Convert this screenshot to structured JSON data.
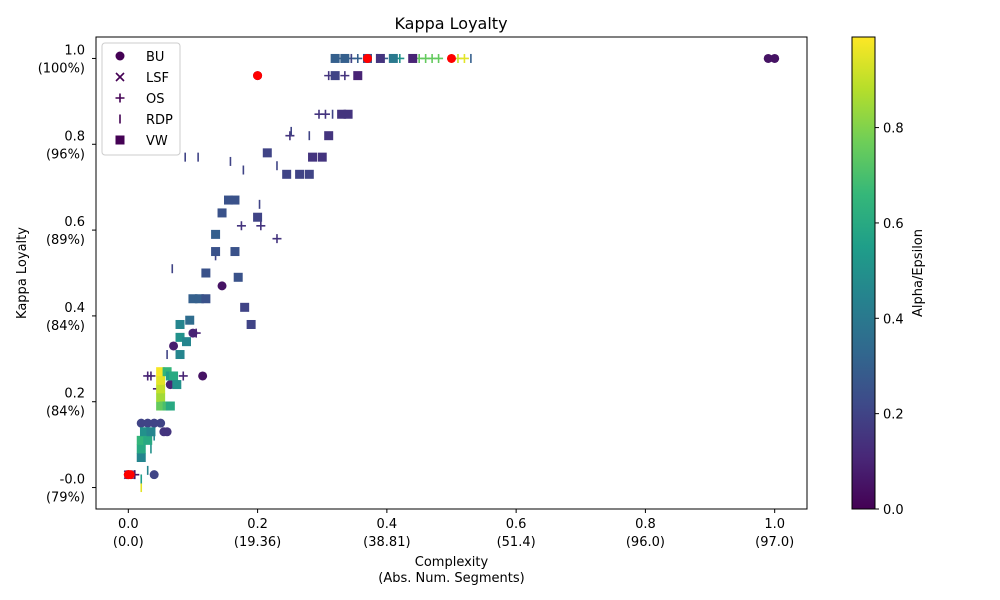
{
  "chart_data": {
    "type": "scatter",
    "title": "Kappa Loyalty",
    "xlabel_lines": [
      "Complexity",
      "(Abs. Num. Segments)"
    ],
    "ylabel": "Kappa Loyalty",
    "xlim": [
      -0.05,
      1.05
    ],
    "ylim": [
      -0.05,
      1.05
    ],
    "x_ticks": [
      {
        "value": 0.0,
        "label": "0.0",
        "sub": "(0.0)"
      },
      {
        "value": 0.2,
        "label": "0.2",
        "sub": "(19.36)"
      },
      {
        "value": 0.4,
        "label": "0.4",
        "sub": "(38.81)"
      },
      {
        "value": 0.6,
        "label": "0.6",
        "sub": "(51.4)"
      },
      {
        "value": 0.8,
        "label": "0.8",
        "sub": "(96.0)"
      },
      {
        "value": 1.0,
        "label": "1.0",
        "sub": "(97.0)"
      }
    ],
    "y_ticks": [
      {
        "value": 0.0,
        "label": "-0.0",
        "sub": "(79%)"
      },
      {
        "value": 0.2,
        "label": "0.2",
        "sub": "(84%)"
      },
      {
        "value": 0.4,
        "label": "0.4",
        "sub": "(84%)"
      },
      {
        "value": 0.6,
        "label": "0.6",
        "sub": "(89%)"
      },
      {
        "value": 0.8,
        "label": "0.8",
        "sub": "(96%)"
      },
      {
        "value": 1.0,
        "label": "1.0",
        "sub": "(100%)"
      }
    ],
    "colorbar": {
      "label": "Alpha/Epsilon",
      "range": [
        0,
        0.99
      ],
      "ticks": [
        {
          "value": 0.0,
          "label": "0.0"
        },
        {
          "value": 0.2,
          "label": "0.2"
        },
        {
          "value": 0.4,
          "label": "0.4"
        },
        {
          "value": 0.6,
          "label": "0.6"
        },
        {
          "value": 0.8,
          "label": "0.8"
        }
      ]
    },
    "legend_position": "top-left",
    "series": [
      {
        "name": "BU",
        "marker": "circle",
        "points": [
          [
            0.0,
            0.03,
            0.05
          ],
          [
            0.04,
            0.03,
            0.2
          ],
          [
            0.02,
            0.15,
            0.2
          ],
          [
            0.03,
            0.15,
            0.2
          ],
          [
            0.04,
            0.15,
            0.2
          ],
          [
            0.05,
            0.15,
            0.2
          ],
          [
            0.055,
            0.13,
            0.15
          ],
          [
            0.06,
            0.13,
            0.15
          ],
          [
            0.065,
            0.24,
            0.1
          ],
          [
            0.07,
            0.33,
            0.08
          ],
          [
            0.1,
            0.36,
            0.1
          ],
          [
            0.115,
            0.26,
            0.05
          ],
          [
            0.145,
            0.47,
            0.05
          ],
          [
            0.2,
            0.96,
            0.05
          ],
          [
            0.99,
            1.0,
            0.05
          ],
          [
            1.0,
            1.0,
            0.05
          ]
        ]
      },
      {
        "name": "LSF",
        "marker": "x",
        "points": [
          [
            0.0,
            0.03,
            0.05
          ],
          [
            0.002,
            0.03,
            0.05
          ]
        ]
      },
      {
        "name": "OS",
        "marker": "plus",
        "points": [
          [
            0.01,
            0.03,
            0.05
          ],
          [
            0.03,
            0.26,
            0.1
          ],
          [
            0.035,
            0.26,
            0.1
          ],
          [
            0.045,
            0.23,
            0.1
          ],
          [
            0.085,
            0.26,
            0.1
          ],
          [
            0.105,
            0.36,
            0.1
          ],
          [
            0.175,
            0.61,
            0.15
          ],
          [
            0.205,
            0.61,
            0.15
          ],
          [
            0.23,
            0.58,
            0.15
          ],
          [
            0.25,
            0.82,
            0.15
          ],
          [
            0.295,
            0.87,
            0.15
          ],
          [
            0.305,
            0.87,
            0.15
          ],
          [
            0.31,
            0.96,
            0.15
          ],
          [
            0.335,
            0.96,
            0.15
          ],
          [
            0.33,
            1.0,
            0.3
          ],
          [
            0.345,
            1.0,
            0.3
          ],
          [
            0.355,
            1.0,
            0.3
          ],
          [
            0.395,
            1.0,
            0.3
          ],
          [
            0.42,
            1.0,
            0.5
          ],
          [
            0.45,
            1.0,
            0.75
          ],
          [
            0.46,
            1.0,
            0.75
          ],
          [
            0.47,
            1.0,
            0.75
          ],
          [
            0.48,
            1.0,
            0.75
          ],
          [
            0.5,
            1.0,
            0.85
          ],
          [
            0.51,
            1.0,
            0.9
          ],
          [
            0.52,
            1.0,
            0.95
          ]
        ]
      },
      {
        "name": "RDP",
        "marker": "vline",
        "points": [
          [
            0.02,
            0.0,
            0.95
          ],
          [
            0.02,
            0.02,
            0.55
          ],
          [
            0.03,
            0.04,
            0.45
          ],
          [
            0.025,
            0.09,
            0.5
          ],
          [
            0.035,
            0.09,
            0.5
          ],
          [
            0.04,
            0.12,
            0.45
          ],
          [
            0.06,
            0.31,
            0.2
          ],
          [
            0.068,
            0.51,
            0.2
          ],
          [
            0.088,
            0.77,
            0.2
          ],
          [
            0.108,
            0.77,
            0.2
          ],
          [
            0.135,
            0.54,
            0.2
          ],
          [
            0.158,
            0.76,
            0.2
          ],
          [
            0.178,
            0.74,
            0.2
          ],
          [
            0.203,
            0.66,
            0.2
          ],
          [
            0.23,
            0.75,
            0.2
          ],
          [
            0.252,
            0.83,
            0.2
          ],
          [
            0.28,
            0.82,
            0.2
          ],
          [
            0.316,
            0.87,
            0.2
          ],
          [
            0.345,
            1.0,
            0.2
          ],
          [
            0.385,
            1.0,
            0.2
          ],
          [
            0.53,
            1.0,
            0.3
          ]
        ]
      },
      {
        "name": "VW",
        "marker": "square",
        "points": [
          [
            0.02,
            0.07,
            0.45
          ],
          [
            0.02,
            0.09,
            0.6
          ],
          [
            0.02,
            0.11,
            0.65
          ],
          [
            0.025,
            0.13,
            0.5
          ],
          [
            0.03,
            0.11,
            0.6
          ],
          [
            0.035,
            0.13,
            0.45
          ],
          [
            0.05,
            0.19,
            0.75
          ],
          [
            0.05,
            0.21,
            0.85
          ],
          [
            0.05,
            0.23,
            0.9
          ],
          [
            0.05,
            0.25,
            0.95
          ],
          [
            0.05,
            0.27,
            0.98
          ],
          [
            0.055,
            0.19,
            0.75
          ],
          [
            0.06,
            0.19,
            0.7
          ],
          [
            0.065,
            0.19,
            0.6
          ],
          [
            0.06,
            0.27,
            0.65
          ],
          [
            0.065,
            0.26,
            0.55
          ],
          [
            0.07,
            0.26,
            0.6
          ],
          [
            0.075,
            0.24,
            0.5
          ],
          [
            0.08,
            0.31,
            0.45
          ],
          [
            0.08,
            0.35,
            0.5
          ],
          [
            0.08,
            0.38,
            0.45
          ],
          [
            0.09,
            0.34,
            0.45
          ],
          [
            0.095,
            0.39,
            0.35
          ],
          [
            0.1,
            0.44,
            0.3
          ],
          [
            0.11,
            0.44,
            0.3
          ],
          [
            0.12,
            0.44,
            0.25
          ],
          [
            0.12,
            0.5,
            0.25
          ],
          [
            0.135,
            0.55,
            0.25
          ],
          [
            0.135,
            0.59,
            0.3
          ],
          [
            0.145,
            0.64,
            0.25
          ],
          [
            0.155,
            0.67,
            0.25
          ],
          [
            0.165,
            0.67,
            0.25
          ],
          [
            0.165,
            0.55,
            0.25
          ],
          [
            0.17,
            0.49,
            0.25
          ],
          [
            0.18,
            0.42,
            0.2
          ],
          [
            0.19,
            0.38,
            0.2
          ],
          [
            0.2,
            0.63,
            0.2
          ],
          [
            0.215,
            0.78,
            0.2
          ],
          [
            0.245,
            0.73,
            0.2
          ],
          [
            0.265,
            0.73,
            0.2
          ],
          [
            0.28,
            0.73,
            0.2
          ],
          [
            0.285,
            0.77,
            0.15
          ],
          [
            0.3,
            0.77,
            0.15
          ],
          [
            0.31,
            0.82,
            0.15
          ],
          [
            0.32,
            0.96,
            0.2
          ],
          [
            0.32,
            1.0,
            0.3
          ],
          [
            0.335,
            1.0,
            0.3
          ],
          [
            0.33,
            0.87,
            0.15
          ],
          [
            0.34,
            0.87,
            0.15
          ],
          [
            0.355,
            0.96,
            0.1
          ],
          [
            0.37,
            1.0,
            0.25
          ],
          [
            0.39,
            1.0,
            0.15
          ],
          [
            0.41,
            1.0,
            0.4
          ],
          [
            0.44,
            1.0,
            0.1
          ]
        ]
      }
    ],
    "highlight_points": [
      [
        0.0,
        0.03
      ],
      [
        0.003,
        0.03
      ],
      [
        0.2,
        0.96
      ],
      [
        0.37,
        1.0
      ],
      [
        0.37,
        1.0
      ],
      [
        0.5,
        1.0
      ]
    ],
    "highlight_color": "#ff0000"
  }
}
